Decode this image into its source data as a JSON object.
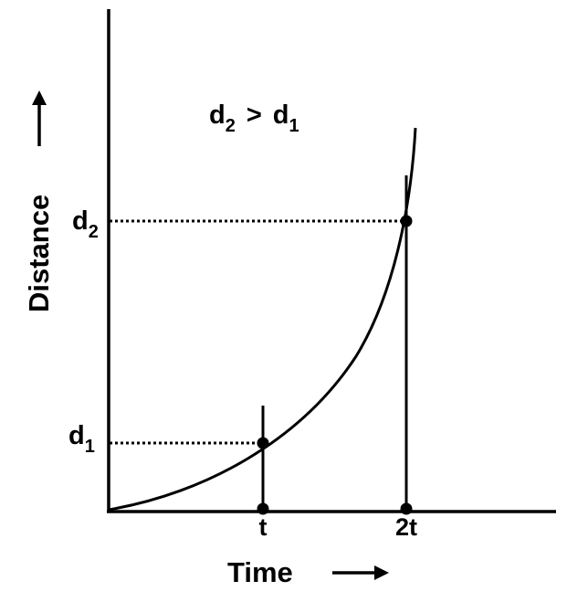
{
  "diagram": {
    "relation": {
      "d_left": "d",
      "sub_left": "2",
      "operator": ">",
      "d_right": "d",
      "sub_right": "1"
    },
    "y_axis": {
      "label": "Distance"
    },
    "x_axis": {
      "label": "Time"
    },
    "x_ticks": [
      {
        "label": "t"
      },
      {
        "label": "2t"
      }
    ],
    "y_ticks": [
      {
        "main": "d",
        "sub": "1"
      },
      {
        "main": "d",
        "sub": "2"
      }
    ],
    "colors": {
      "ink": "#000000",
      "background": "#ffffff"
    }
  }
}
